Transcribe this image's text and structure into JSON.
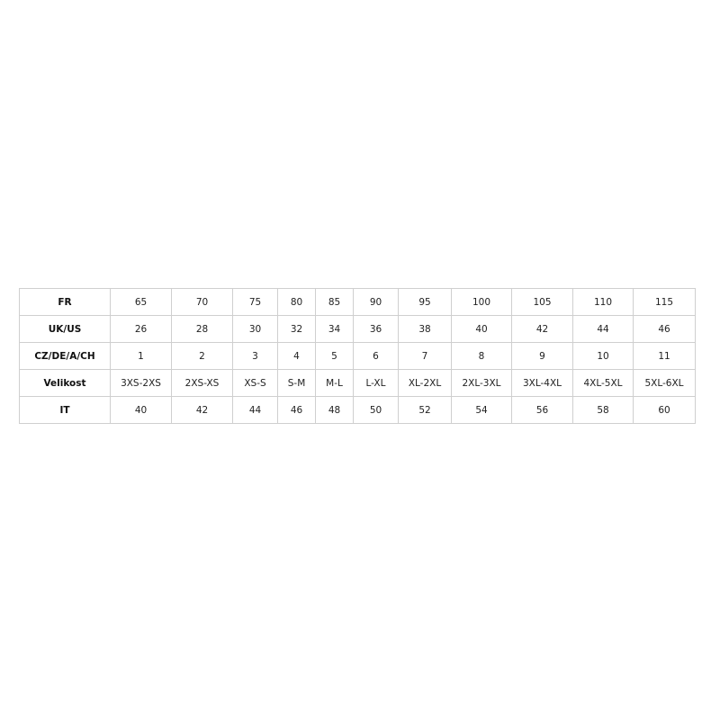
{
  "table": {
    "rows": [
      {
        "label": "FR",
        "cells": [
          "65",
          "70",
          "75",
          "80",
          "85",
          "90",
          "95",
          "100",
          "105",
          "110",
          "115"
        ]
      },
      {
        "label": "UK/US",
        "cells": [
          "26",
          "28",
          "30",
          "32",
          "34",
          "36",
          "38",
          "40",
          "42",
          "44",
          "46"
        ]
      },
      {
        "label": "CZ/DE/A/CH",
        "cells": [
          "1",
          "2",
          "3",
          "4",
          "5",
          "6",
          "7",
          "8",
          "9",
          "10",
          "11"
        ]
      },
      {
        "label": "Velikost",
        "cells": [
          "3XS-2XS",
          "2XS-XS",
          "XS-S",
          "S-M",
          "M-L",
          "L-XL",
          "XL-2XL",
          "2XL-3XL",
          "3XL-4XL",
          "4XL-5XL",
          "5XL-6XL"
        ]
      },
      {
        "label": "IT",
        "cells": [
          "40",
          "42",
          "44",
          "46",
          "48",
          "50",
          "52",
          "54",
          "56",
          "58",
          "60"
        ]
      }
    ]
  }
}
